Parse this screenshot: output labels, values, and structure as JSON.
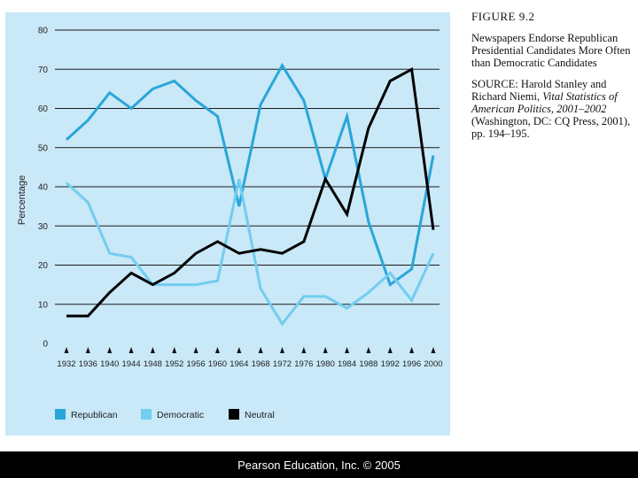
{
  "caption": {
    "figure_label": "FIGURE 9.2",
    "description": "Newspapers Endorse Republican Presidential Candidates More Often than Democratic Candidates",
    "source_label": "SOURCE:",
    "source_authors": "Harold Stanley and Richard Niemi,",
    "source_title": "Vital Statistics of American Politics, 2001–2002",
    "source_rest": "(Washington, DC: CQ Press, 2001), pp. 194–195."
  },
  "footer": "Pearson Education, Inc. © 2005",
  "chart_data": {
    "type": "line",
    "ylabel": "Percentage",
    "xlabel": "",
    "ylim": [
      0,
      80
    ],
    "yticks": [
      0,
      10,
      20,
      30,
      40,
      50,
      60,
      70,
      80
    ],
    "grid": "horizontal",
    "legend_position": "bottom",
    "x": [
      "1932",
      "1936",
      "1940",
      "1944",
      "1948",
      "1952",
      "1956",
      "1960",
      "1964",
      "1968",
      "1972",
      "1976",
      "1980",
      "1984",
      "1988",
      "1992",
      "1996",
      "2000"
    ],
    "series": [
      {
        "name": "Republican",
        "color": "#2aa6d8",
        "values": [
          52,
          57,
          64,
          60,
          65,
          67,
          62,
          58,
          35,
          61,
          71,
          62,
          42,
          58,
          31,
          15,
          19,
          48
        ]
      },
      {
        "name": "Democratic",
        "color": "#72cdef",
        "values": [
          41,
          36,
          23,
          22,
          15,
          15,
          15,
          16,
          42,
          14,
          5,
          12,
          12,
          9,
          13,
          18,
          11,
          23
        ]
      },
      {
        "name": "Neutral",
        "color": "#000000",
        "values": [
          7,
          7,
          13,
          18,
          15,
          18,
          23,
          26,
          23,
          24,
          23,
          26,
          42,
          33,
          55,
          67,
          70,
          29
        ]
      }
    ]
  }
}
